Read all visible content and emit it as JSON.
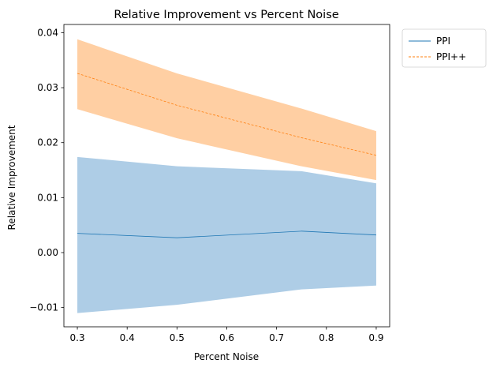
{
  "chart_data": {
    "type": "line",
    "title": "Relative Improvement vs Percent Noise",
    "xlabel": "Percent Noise",
    "ylabel": "Relative Improvement",
    "x": [
      0.3,
      0.5,
      0.75,
      0.9
    ],
    "xlim": [
      0.273,
      0.927
    ],
    "ylim": [
      -0.0135,
      0.0415
    ],
    "xticks": [
      0.3,
      0.4,
      0.5,
      0.6,
      0.7,
      0.8,
      0.9
    ],
    "xtick_labels": [
      "0.3",
      "0.4",
      "0.5",
      "0.6",
      "0.7",
      "0.8",
      "0.9"
    ],
    "yticks": [
      -0.01,
      0.0,
      0.01,
      0.02,
      0.03,
      0.04
    ],
    "ytick_labels": [
      "−0.01",
      "0.00",
      "0.01",
      "0.02",
      "0.03",
      "0.04"
    ],
    "grid": false,
    "legend_position": "outside-top-right",
    "series": [
      {
        "name": "PPI",
        "values": [
          0.0035,
          0.0027,
          0.0039,
          0.0032
        ],
        "lower": [
          -0.011,
          -0.0095,
          -0.0067,
          -0.006
        ],
        "upper": [
          0.0174,
          0.0157,
          0.0148,
          0.0126
        ],
        "line_color": "#1f77b4",
        "band_color": "#aecde6",
        "line_style": "solid"
      },
      {
        "name": "PPI++",
        "values": [
          0.0326,
          0.0268,
          0.0209,
          0.0177
        ],
        "lower": [
          0.0261,
          0.0208,
          0.0157,
          0.0132
        ],
        "upper": [
          0.0388,
          0.0326,
          0.0262,
          0.0221
        ],
        "line_color": "#ff7f0e",
        "band_color": "#ffcfa3",
        "line_style": "dashed"
      }
    ]
  }
}
